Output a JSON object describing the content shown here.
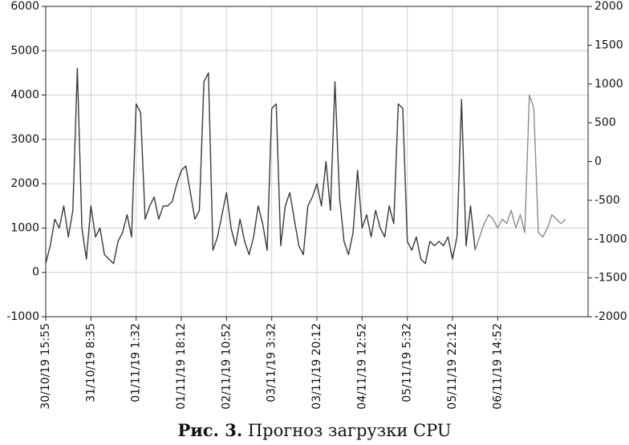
{
  "chart_data": {
    "type": "line",
    "caption_label": "Рис. 3.",
    "title": "Прогноз загрузки CPU",
    "xlim": [
      0,
      12
    ],
    "xticks": [
      {
        "value": 0,
        "label": "30/10/19 15:55"
      },
      {
        "value": 1,
        "label": "31/10/19 8:35"
      },
      {
        "value": 2,
        "label": "01/11/19 1:32"
      },
      {
        "value": 3,
        "label": "01/11/19 18:12"
      },
      {
        "value": 4,
        "label": "02/11/19 10:52"
      },
      {
        "value": 5,
        "label": "03/11/19 3:32"
      },
      {
        "value": 6,
        "label": "03/11/19 20:12"
      },
      {
        "value": 7,
        "label": "04/11/19 12:52"
      },
      {
        "value": 8,
        "label": "05/11/19 5:32"
      },
      {
        "value": 9,
        "label": "05/11/19 22:12"
      },
      {
        "value": 10,
        "label": "06/11/19 14:52"
      }
    ],
    "ylim": [
      -1000,
      6000
    ],
    "yticks": [
      -1000,
      0,
      1000,
      2000,
      3000,
      4000,
      5000,
      6000
    ],
    "y2lim": [
      -2000,
      2000
    ],
    "y2ticks": [
      -2000,
      -1500,
      -1000,
      -500,
      0,
      500,
      1000,
      1500,
      2000
    ],
    "grid": true,
    "series": [
      {
        "color": "#3a3a3a",
        "x": [
          0,
          0.1,
          0.2,
          0.3,
          0.4,
          0.5,
          0.6,
          0.7,
          0.8,
          0.9,
          1,
          1.1,
          1.2,
          1.3,
          1.4,
          1.5,
          1.6,
          1.7,
          1.8,
          1.9,
          2,
          2.1,
          2.2,
          2.3,
          2.4,
          2.5,
          2.6,
          2.7,
          2.8,
          2.9,
          3,
          3.1,
          3.2,
          3.3,
          3.4,
          3.5,
          3.6,
          3.7,
          3.8,
          3.9,
          4,
          4.1,
          4.2,
          4.3,
          4.4,
          4.5,
          4.6,
          4.7,
          4.8,
          4.9,
          5,
          5.1,
          5.2,
          5.3,
          5.4,
          5.5,
          5.6,
          5.7,
          5.8,
          5.9,
          6,
          6.1,
          6.2,
          6.3,
          6.4,
          6.5,
          6.6,
          6.7,
          6.8,
          6.9,
          7,
          7.1,
          7.2,
          7.3,
          7.4,
          7.5,
          7.6,
          7.7,
          7.8,
          7.9,
          8,
          8.1,
          8.2,
          8.3,
          8.4,
          8.5,
          8.6,
          8.7,
          8.8,
          8.9,
          9,
          9.1,
          9.2,
          9.3,
          9.4,
          9.5
        ],
        "values": [
          200,
          600,
          1200,
          1000,
          1500,
          800,
          1400,
          4600,
          1000,
          300,
          1500,
          800,
          1000,
          400,
          300,
          200,
          700,
          900,
          1300,
          800,
          3800,
          3600,
          1200,
          1500,
          1700,
          1200,
          1500,
          1500,
          1600,
          2000,
          2300,
          2400,
          1800,
          1200,
          1400,
          4300,
          4500,
          500,
          800,
          1300,
          1800,
          1000,
          600,
          1200,
          700,
          400,
          800,
          1500,
          1100,
          500,
          3700,
          3800,
          600,
          1500,
          1800,
          1200,
          600,
          400,
          1500,
          1700,
          2000,
          1500,
          2500,
          1400,
          4300,
          1700,
          700,
          400,
          900,
          2300,
          1000,
          1300,
          800,
          1400,
          1000,
          800,
          1500,
          1100,
          3800,
          3700,
          700,
          500,
          800,
          300,
          200,
          700,
          600,
          700,
          600,
          800,
          300,
          800,
          3900,
          600,
          1500,
          500
        ]
      },
      {
        "color": "#8c8c8c",
        "x": [
          9.5,
          9.6,
          9.7,
          9.8,
          9.9,
          10,
          10.1,
          10.2,
          10.3,
          10.4,
          10.5,
          10.6,
          10.7,
          10.8,
          10.9,
          11,
          11.1,
          11.2,
          11.3,
          11.4,
          11.5
        ],
        "values": [
          500,
          800,
          1100,
          1300,
          1200,
          1000,
          1200,
          1100,
          1400,
          1000,
          1300,
          900,
          4000,
          3700,
          900,
          800,
          1000,
          1300,
          1200,
          1100,
          1200
        ]
      }
    ]
  }
}
